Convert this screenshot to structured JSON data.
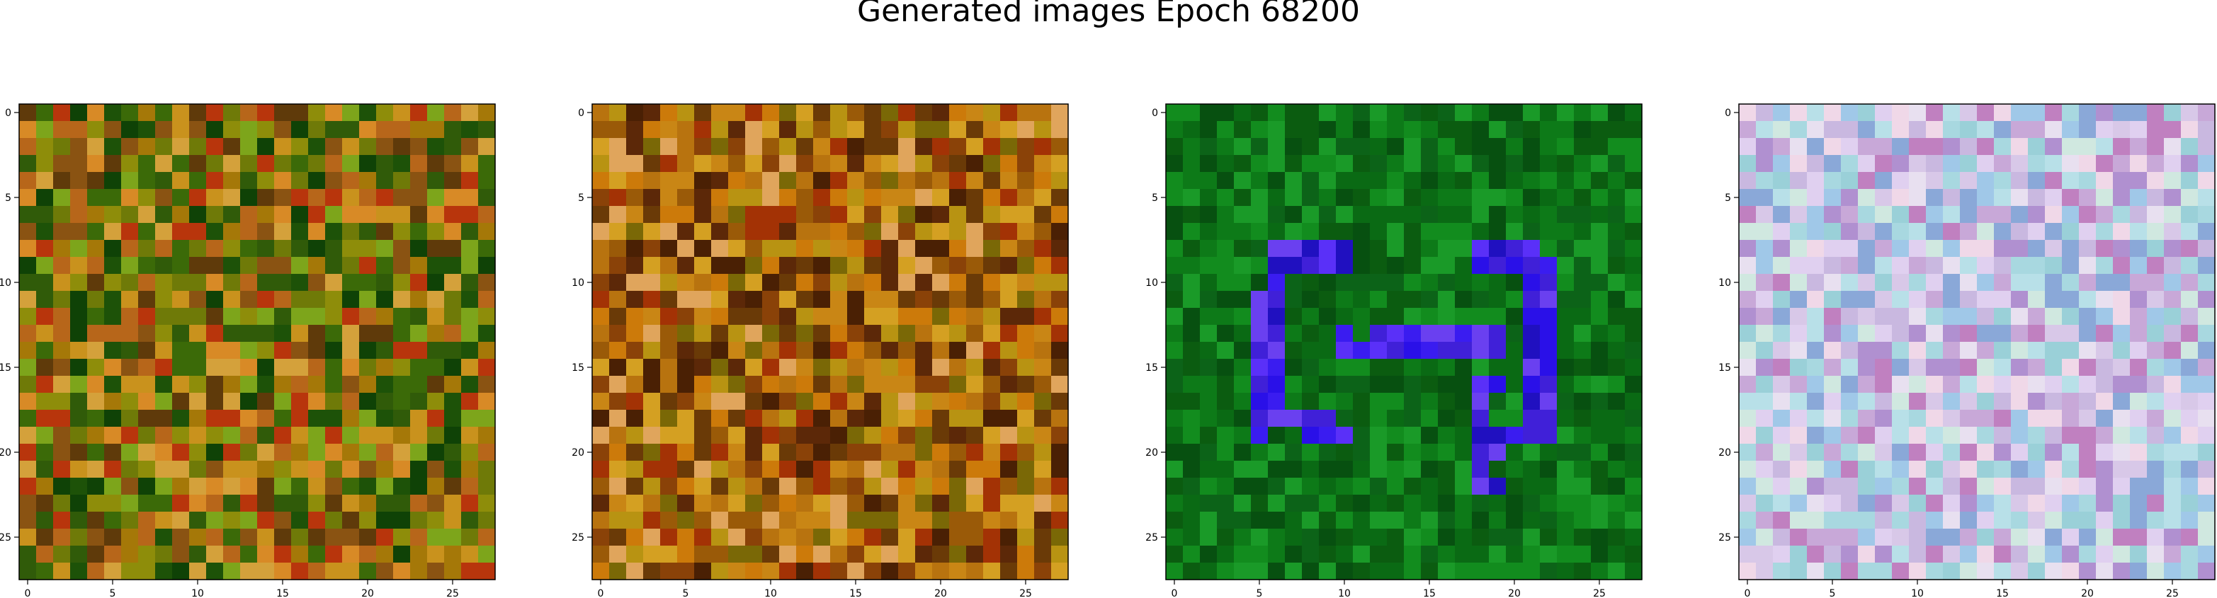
{
  "title": "Generated images Epoch 68200",
  "chart_data": {
    "type": "heatmap",
    "title": "Generated images Epoch 68200",
    "grid_size": [
      28,
      28
    ],
    "grid": false,
    "panels": [
      {
        "name": "image-1",
        "xticks": [
          0,
          5,
          10,
          15,
          20,
          25
        ],
        "yticks": [
          0,
          5,
          10,
          15,
          20,
          25
        ],
        "xlim": [
          -0.5,
          27.5
        ],
        "ylim": [
          27.5,
          -0.5
        ],
        "palette": [
          "#6f7a08",
          "#8e8d0a",
          "#a57808",
          "#3b6a08",
          "#1d5208",
          "#0f4206",
          "#b7661a",
          "#c9921d",
          "#d4a13b",
          "#8a5312",
          "#5f3a0a",
          "#b8350c",
          "#d88a26",
          "#7da51b",
          "#305b09"
        ],
        "description": "olive/green/orange noisy texture"
      },
      {
        "name": "image-2",
        "xticks": [
          0,
          5,
          10,
          15,
          20,
          25
        ],
        "yticks": [
          0,
          5,
          10,
          15,
          20,
          25
        ],
        "xlim": [
          -0.5,
          27.5
        ],
        "ylim": [
          27.5,
          -0.5
        ],
        "palette": [
          "#9a5a08",
          "#b8730f",
          "#8a4208",
          "#c98615",
          "#6a3a07",
          "#d4a022",
          "#5c2808",
          "#a33205",
          "#e0a55c",
          "#4a2004",
          "#b89312",
          "#7a6806",
          "#cc7a0a"
        ],
        "description": "brown/orange noisy texture with dark blobs"
      },
      {
        "name": "image-3",
        "xticks": [
          0,
          5,
          10,
          15,
          20,
          25
        ],
        "yticks": [
          0,
          5,
          10,
          15,
          20,
          25
        ],
        "xlim": [
          -0.5,
          27.5
        ],
        "ylim": [
          27.5,
          -0.5
        ],
        "palette": [
          "#0a6a14",
          "#0d7a18",
          "#0b5c10",
          "#128c1e",
          "#075010",
          "#1a9a28",
          "#0c6318"
        ],
        "accent": "#3a1cf0",
        "description": "green background with blue G-like glyph"
      },
      {
        "name": "image-4",
        "xticks": [
          0,
          5,
          10,
          15,
          20,
          25
        ],
        "yticks": [
          0,
          5,
          10,
          15,
          20,
          25
        ],
        "xlim": [
          -0.5,
          27.5
        ],
        "ylim": [
          27.5,
          -0.5
        ],
        "palette": [
          "#c9b8e0",
          "#a8d8e0",
          "#d8c8e8",
          "#b8e0e8",
          "#e0d0f0",
          "#9ad0d8",
          "#c8a8d8",
          "#e8e0f0",
          "#a0c8e8",
          "#d0e8e0",
          "#b090d0",
          "#f0d8e8",
          "#8aa8d8",
          "#c080c0"
        ],
        "description": "pastel lavender/cyan noisy texture"
      }
    ]
  }
}
